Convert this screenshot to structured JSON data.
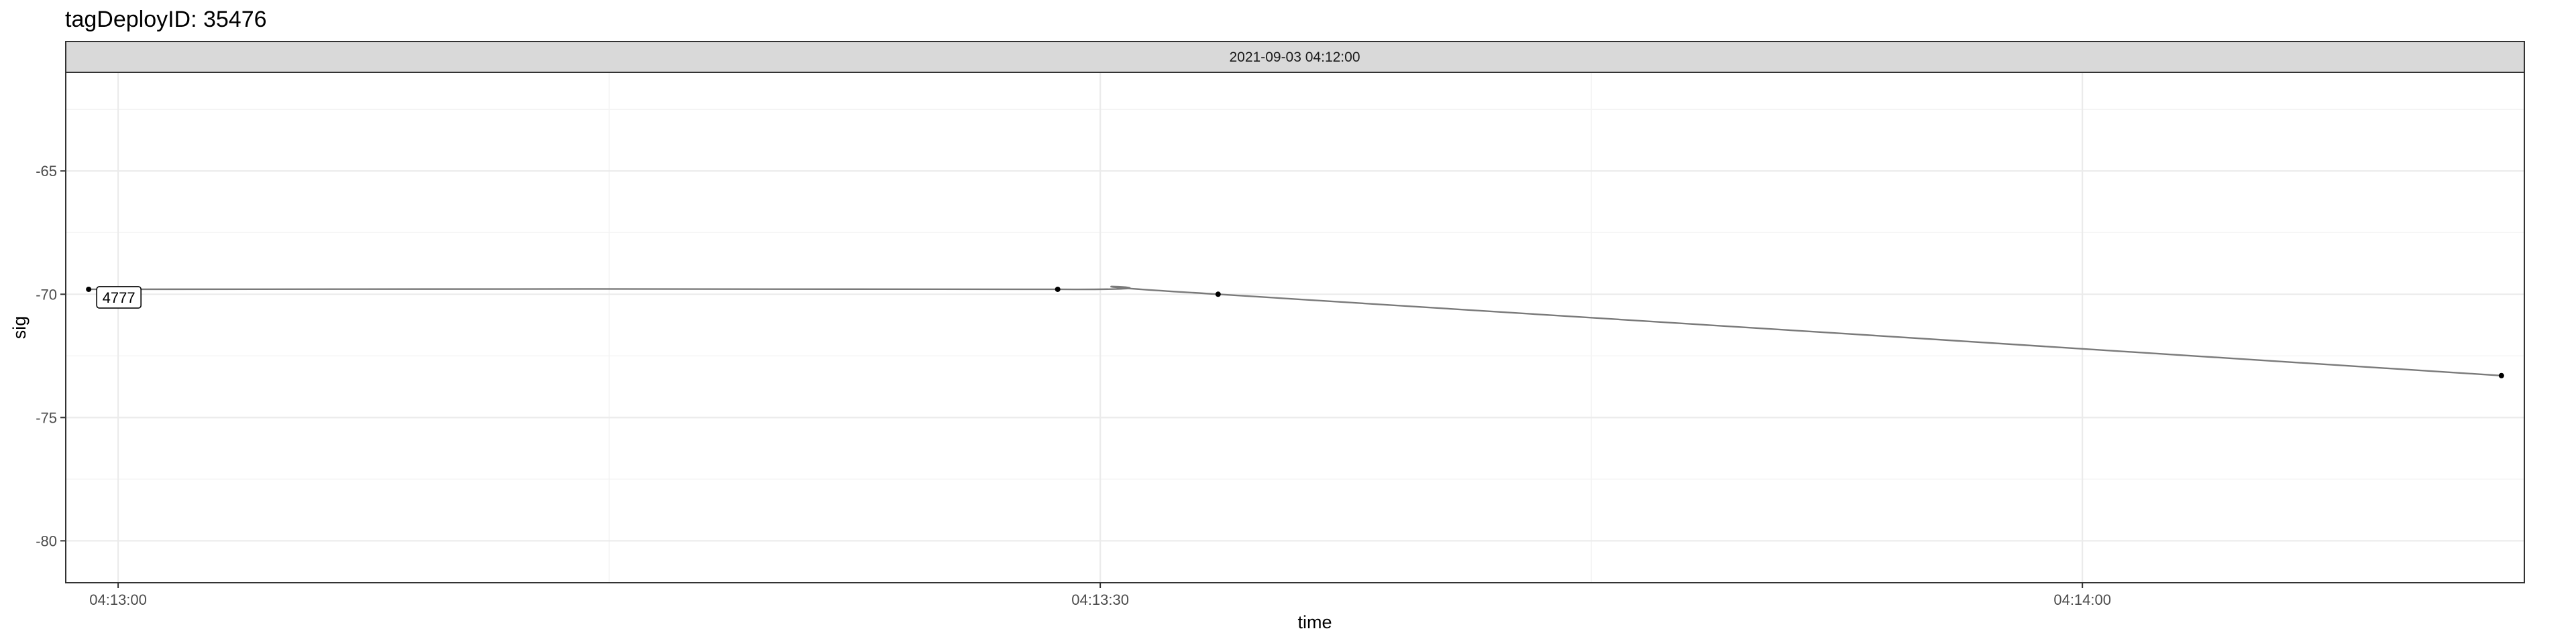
{
  "chart_data": {
    "type": "line",
    "title": "tagDeployID: 35476",
    "facet_label": "2021-09-03 04:12:00",
    "xlabel": "time",
    "ylabel": "sig",
    "x_ticks": [
      "04:13:00",
      "04:13:30",
      "04:14:00"
    ],
    "y_ticks": [
      -65,
      -70,
      -75,
      -80
    ],
    "xlim": [
      "04:12:58.4",
      "04:14:13.5"
    ],
    "ylim": [
      -81.7,
      -61.0
    ],
    "grid": true,
    "legend": "none",
    "points": [
      {
        "x": "04:12:59.1",
        "y": -69.8,
        "label": "4777"
      },
      {
        "x": "04:13:28.7",
        "y": -69.8
      },
      {
        "x": "04:13:33.6",
        "y": -70.0
      },
      {
        "x": "04:14:12.8",
        "y": -73.3
      }
    ],
    "colors": {
      "line": "#7a7a7a",
      "point": "#000000",
      "strip_fill": "#d9d9d9",
      "grid_major": "#ebebeb",
      "grid_minor": "#f4f4f4",
      "panel_border": "#333333"
    }
  }
}
